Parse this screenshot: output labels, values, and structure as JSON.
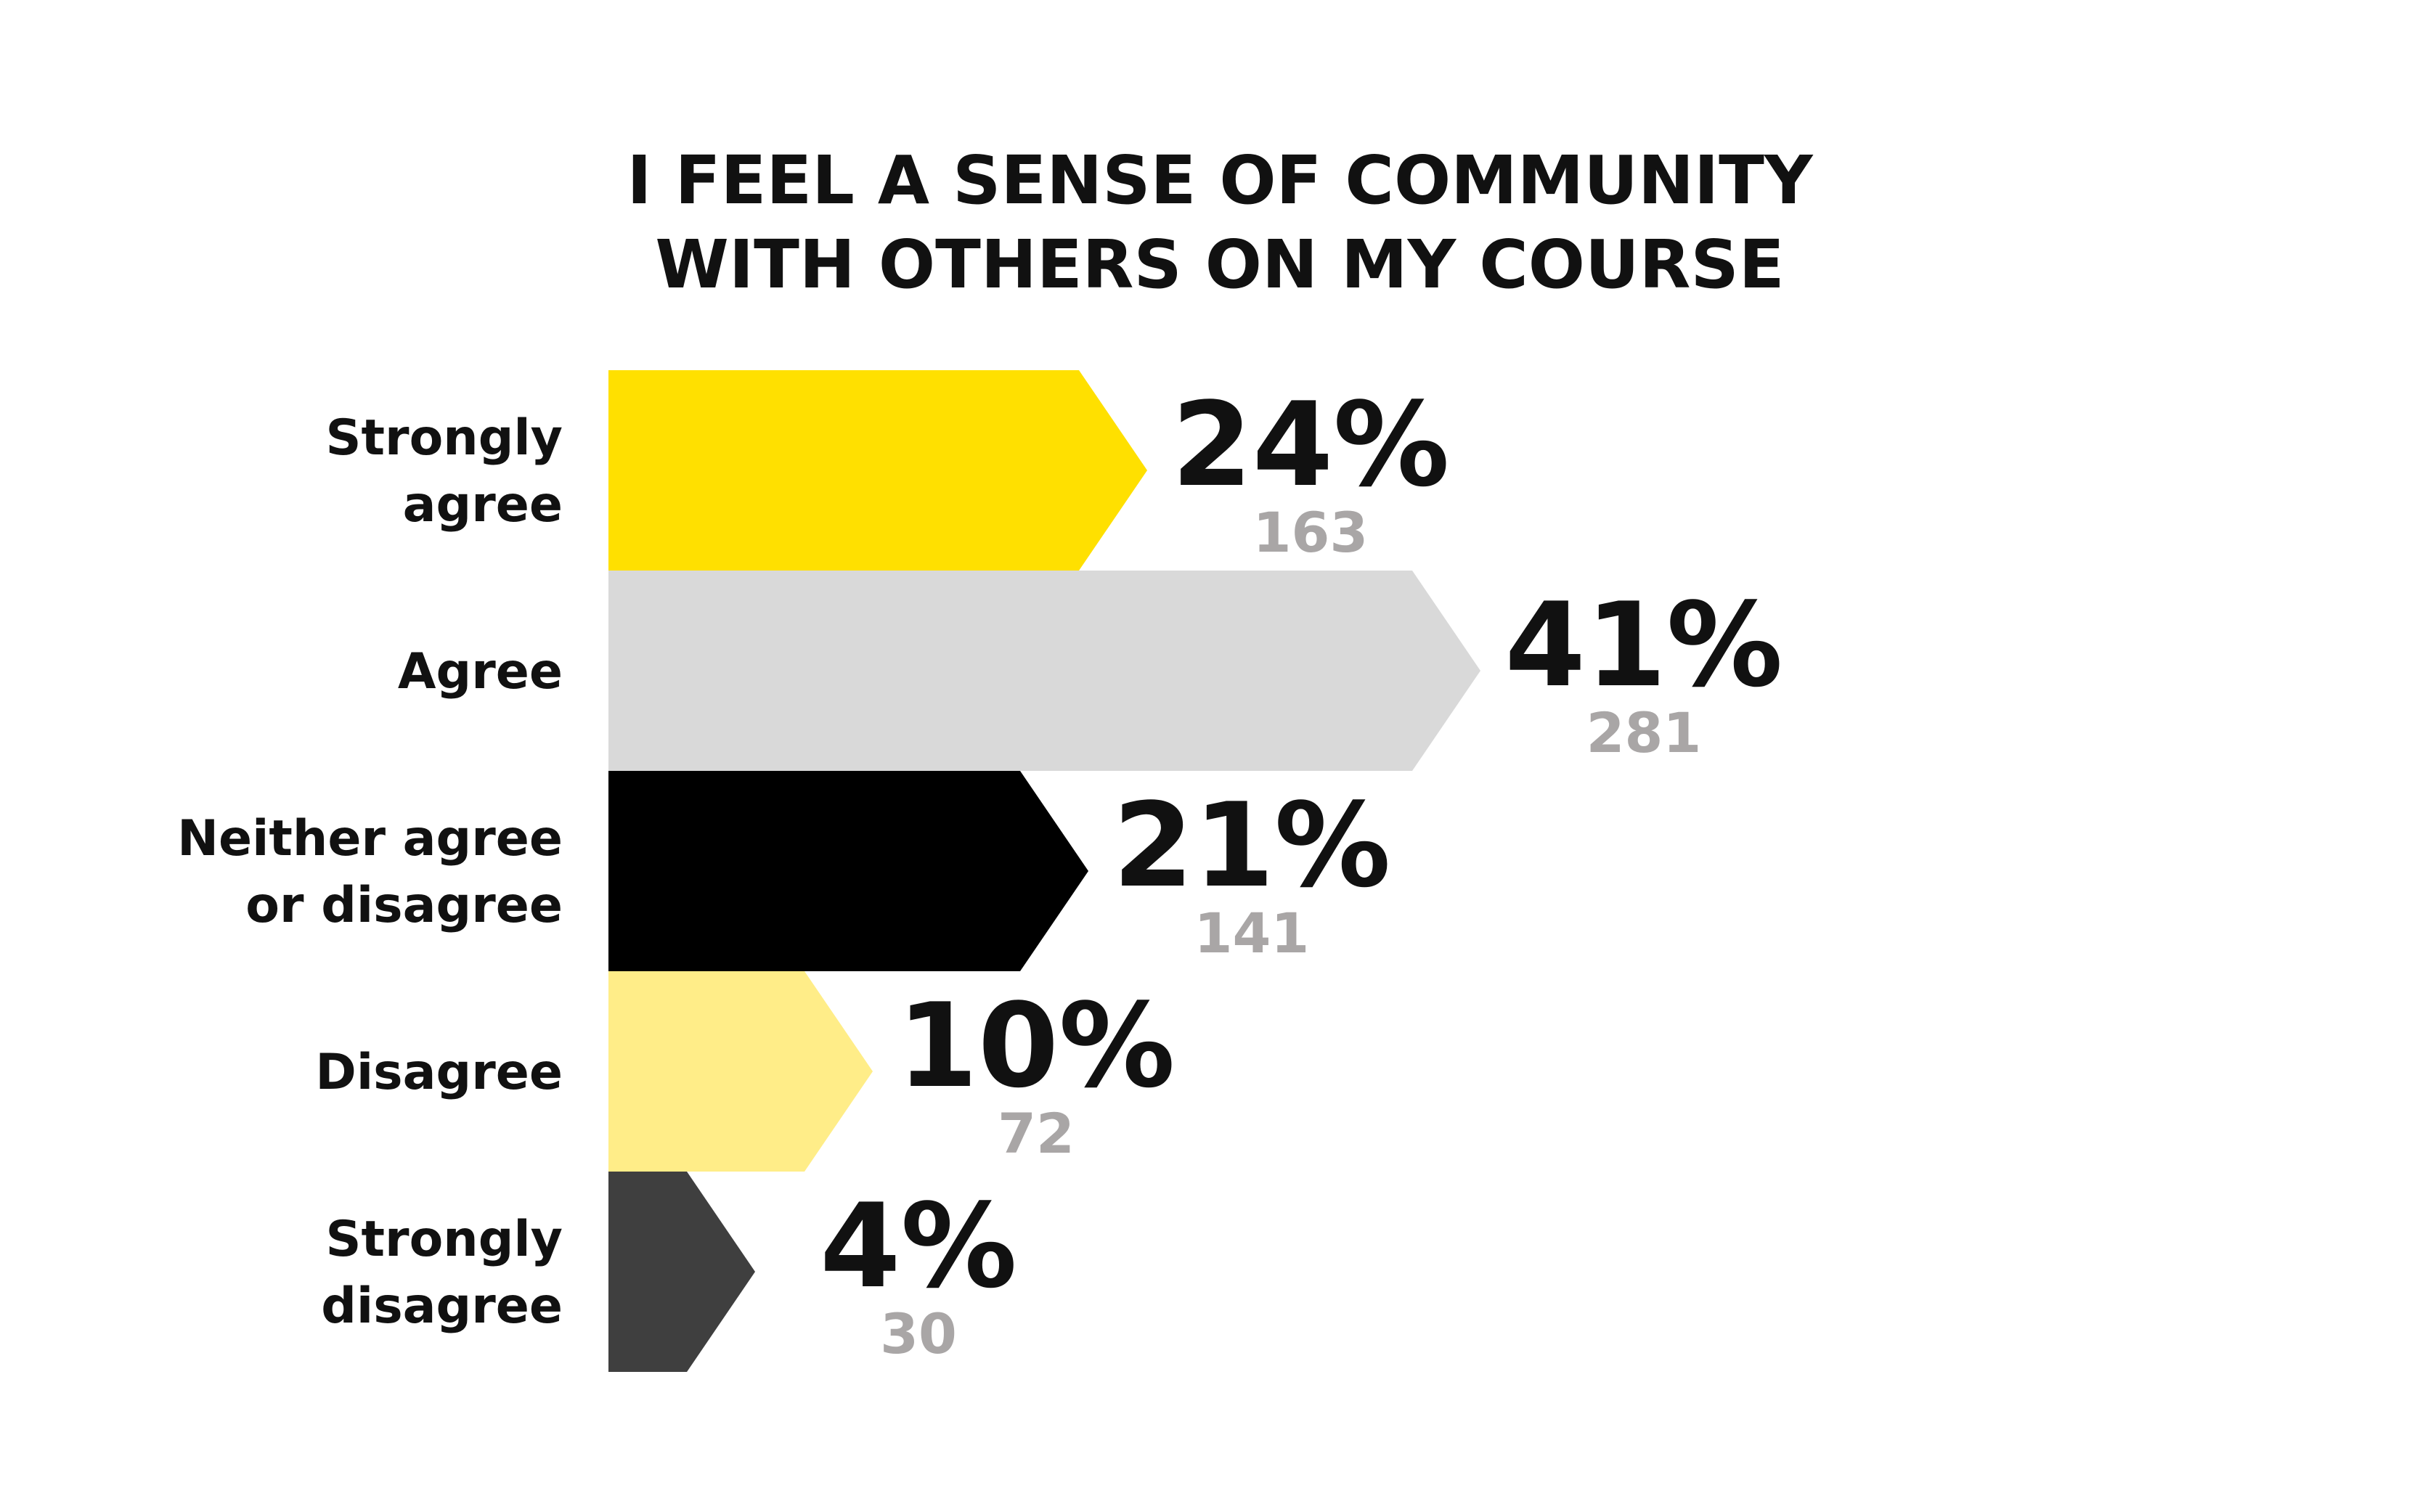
{
  "chart_data": {
    "type": "bar",
    "orientation": "horizontal",
    "title": "I FEEL A SENSE OF COMMUNITY WITH OTHERS ON MY COURSE",
    "title_lines": [
      "I FEEL A SENSE OF COMMUNITY",
      "WITH OTHERS ON MY COURSE"
    ],
    "categories": [
      "Strongly agree",
      "Agree",
      "Neither agree or disagree",
      "Disagree",
      "Strongly disagree"
    ],
    "category_label_lines": [
      [
        "Strongly",
        "agree"
      ],
      [
        "Agree"
      ],
      [
        "Neither agree",
        "or disagree"
      ],
      [
        "Disagree"
      ],
      [
        "Strongly",
        "disagree"
      ]
    ],
    "values": [
      24,
      41,
      21,
      10,
      4
    ],
    "value_labels": [
      "24%",
      "41%",
      "21%",
      "10%",
      "4%"
    ],
    "counts": [
      163,
      281,
      141,
      72,
      30
    ],
    "count_labels": [
      "163",
      "281",
      "141",
      "72",
      "30"
    ],
    "colors": [
      "#ffe000",
      "#d9d9d9",
      "#000000",
      "#ffed88",
      "#3f3f3f"
    ],
    "value_label_color": "#111111",
    "count_label_color": "#a9a6a6",
    "grid": false,
    "legend": "none"
  }
}
